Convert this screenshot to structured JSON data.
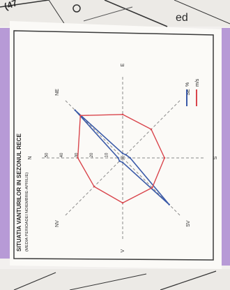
{
  "page_corner": {
    "top_left_text": "(47",
    "top_right_text": "ed"
  },
  "chart_data": {
    "type": "radar",
    "title": "SITUATIA VANTURILOR IN SEZONUL RECE",
    "subtitle": "(MEDIA PERIOADEI NOIEMBRIE-APRILIE)",
    "directions": [
      "N",
      "NE",
      "E",
      "SE",
      "S",
      "SV",
      "V",
      "NV"
    ],
    "radial_ticks": [
      10,
      20,
      30,
      40,
      50
    ],
    "rmax": 55,
    "series": [
      {
        "name": "%",
        "color": "#3a5aa8",
        "values": [
          3,
          45,
          3,
          3,
          5,
          44,
          3,
          3
        ]
      },
      {
        "name": "m/s",
        "color": "#d9454c",
        "values": [
          30,
          40,
          29,
          27,
          28,
          28,
          30,
          27
        ]
      }
    ],
    "legend_position": "upper-right"
  },
  "colors": {
    "page_bg": "#f7f6f3",
    "frame": "#3a3a3a",
    "purple_band": "#b79ad6"
  }
}
